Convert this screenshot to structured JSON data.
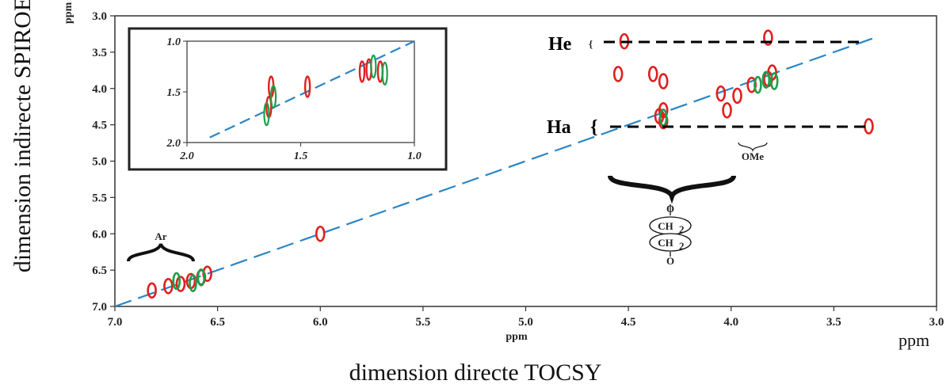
{
  "chart_data": {
    "type": "scatter",
    "xlabel": "dimension directe TOCSY",
    "ylabel": "dimension indirecte SPIROE",
    "x_unit_axis": "ppm",
    "x_unit_corner": "ppm",
    "y_unit_corner": "ppm",
    "xlim": [
      7.0,
      3.0
    ],
    "ylim": [
      3.0,
      7.0
    ],
    "x_ticks": [
      "7.0",
      "6.5",
      "6.0",
      "5.5",
      "5.0",
      "4.5",
      "4.0",
      "3.5",
      "3.0"
    ],
    "y_ticks": [
      "3.0",
      "3.5",
      "4.0",
      "4.5",
      "5.0",
      "5.5",
      "6.0",
      "6.5",
      "7.0"
    ],
    "diagonal": [
      [
        7.0,
        7.0
      ],
      [
        3.3,
        3.3
      ]
    ],
    "series": [
      {
        "color": "#e02020",
        "points": [
          [
            6.82,
            6.78
          ],
          [
            6.74,
            6.72
          ],
          [
            6.68,
            6.69
          ],
          [
            6.63,
            6.65
          ],
          [
            6.58,
            6.6
          ],
          [
            6.55,
            6.55
          ],
          [
            6.0,
            6.0
          ],
          [
            4.52,
            3.35
          ],
          [
            4.55,
            3.8
          ],
          [
            4.38,
            3.8
          ],
          [
            4.33,
            3.9
          ],
          [
            4.05,
            4.07
          ],
          [
            4.02,
            4.3
          ],
          [
            4.35,
            4.38
          ],
          [
            4.33,
            4.45
          ],
          [
            3.97,
            4.1
          ],
          [
            3.9,
            3.95
          ],
          [
            3.82,
            3.87
          ],
          [
            3.8,
            3.78
          ],
          [
            3.82,
            3.3
          ],
          [
            3.33,
            4.52
          ],
          [
            4.33,
            4.3
          ]
        ]
      },
      {
        "color": "#1e9e4a",
        "points": [
          [
            6.7,
            6.65
          ],
          [
            6.62,
            6.68
          ],
          [
            6.58,
            6.6
          ],
          [
            4.33,
            4.4
          ],
          [
            3.87,
            3.95
          ],
          [
            3.83,
            3.88
          ],
          [
            3.79,
            3.9
          ]
        ]
      }
    ],
    "inset": {
      "xlim": [
        2.0,
        1.0
      ],
      "ylim": [
        1.0,
        2.0
      ],
      "x_ticks": [
        "2.0",
        "1.5",
        "1.0"
      ],
      "y_ticks": [
        "1.0",
        "1.5",
        "2.0"
      ],
      "red_points": [
        [
          1.63,
          1.45
        ],
        [
          1.64,
          1.65
        ],
        [
          1.47,
          1.45
        ],
        [
          1.23,
          1.3
        ],
        [
          1.2,
          1.28
        ],
        [
          1.15,
          1.3
        ]
      ],
      "green_points": [
        [
          1.65,
          1.72
        ],
        [
          1.62,
          1.55
        ],
        [
          1.18,
          1.25
        ],
        [
          1.13,
          1.32
        ]
      ]
    },
    "annotations": {
      "ar": "Ar",
      "ome": "OMe",
      "he": "He",
      "ha": "Ha",
      "brace_left": "{",
      "o_top": "O",
      "ch2_a": "CH",
      "ch2_b": "CH",
      "sub2": "2",
      "o_bottom": "O"
    }
  }
}
